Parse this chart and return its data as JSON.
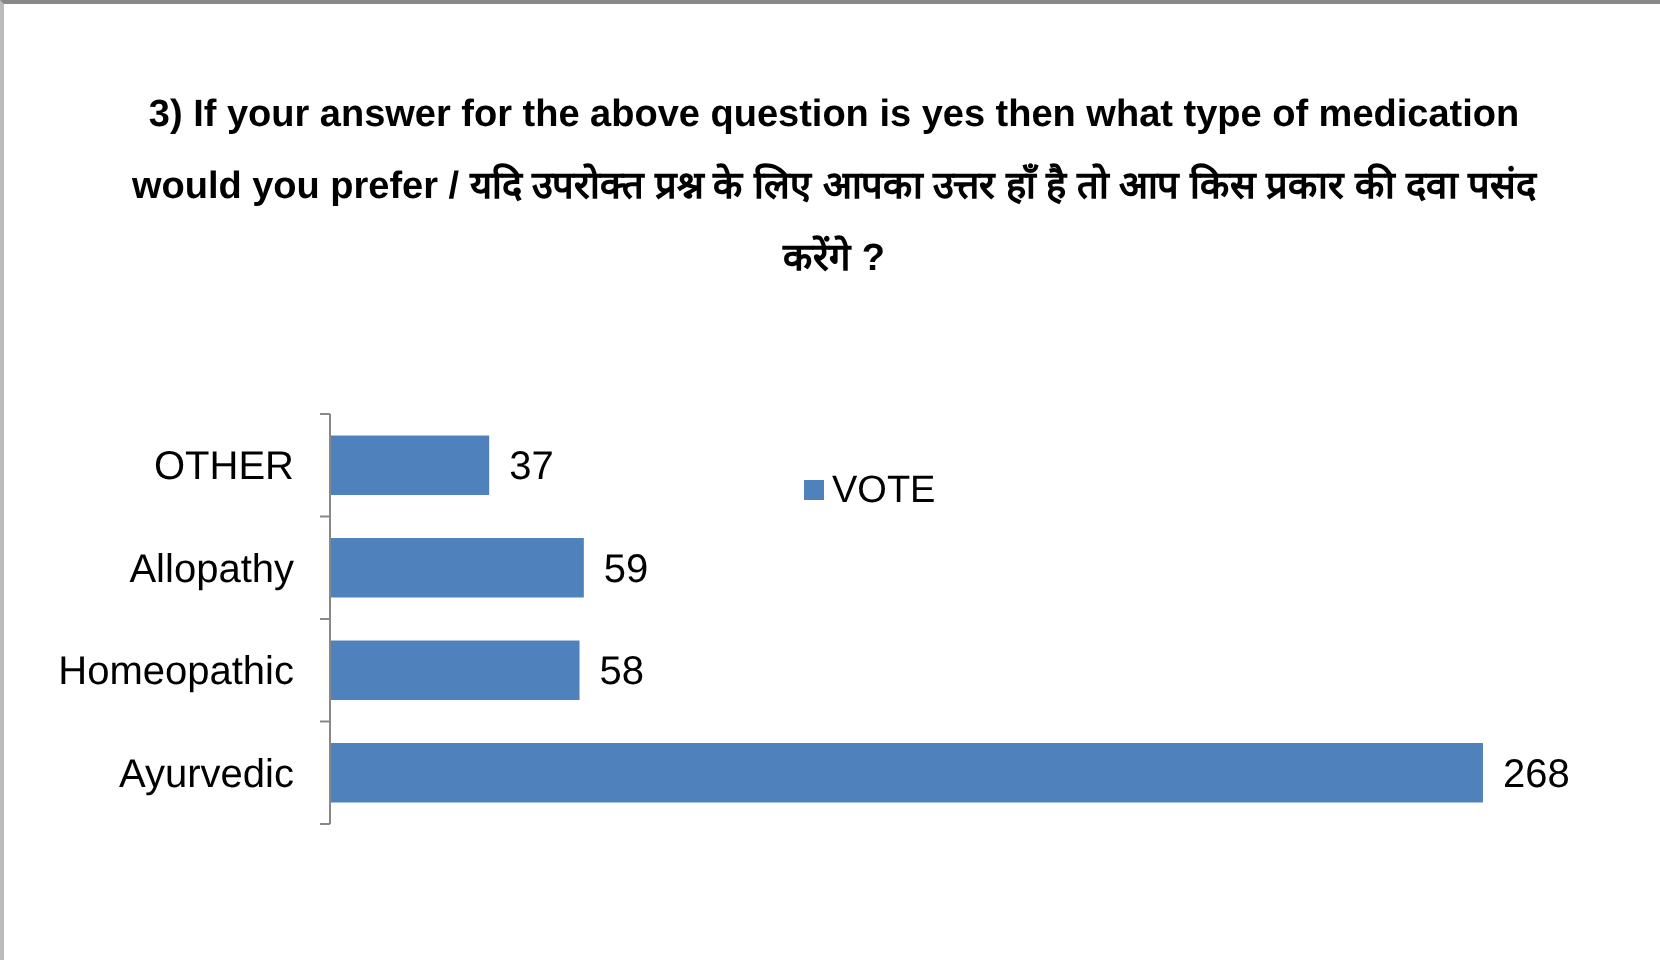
{
  "chart_data": {
    "type": "bar",
    "orientation": "horizontal",
    "title": "3) If your answer for the above question is yes then what type of medication would you prefer / यदि उपरोक्त प्रश्न के लिए आपका उत्तर हाँ है तो आप किस प्रकार की दवा पसंद करेंगे ?",
    "categories": [
      "OTHER",
      "Allopathy",
      "Homeopathic",
      "Ayurvedic"
    ],
    "series": [
      {
        "name": "VOTE",
        "color": "#4f81bd",
        "values": [
          37,
          59,
          58,
          268
        ]
      }
    ],
    "data_labels": true,
    "legend": "top",
    "grid": false
  }
}
